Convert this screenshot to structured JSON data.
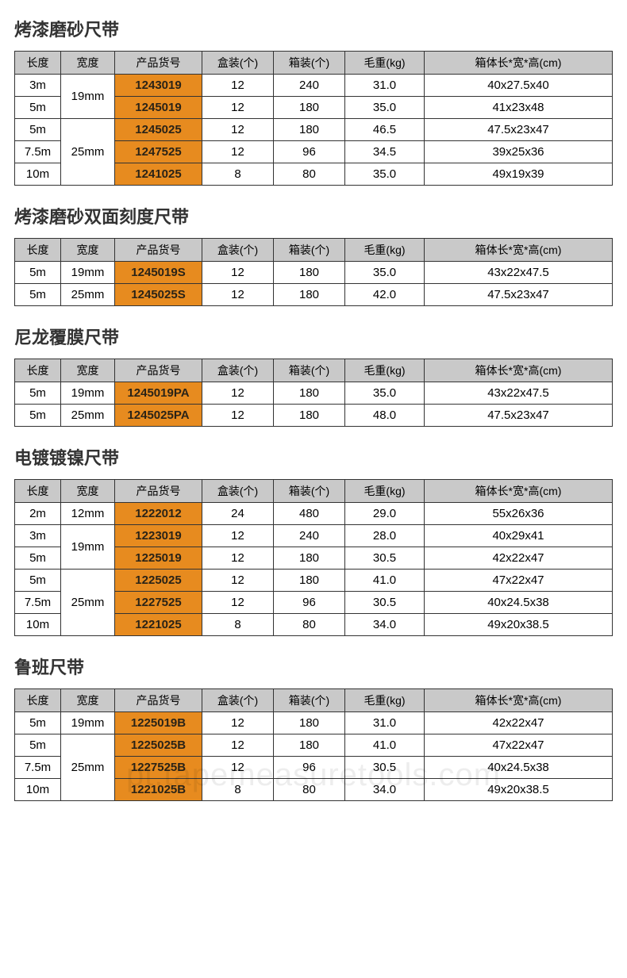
{
  "headers": {
    "length": "长度",
    "width": "宽度",
    "code": "产品货号",
    "box": "盒装(个)",
    "crate": "箱装(个)",
    "weight": "毛重(kg)",
    "dims": "箱体长*宽*高(cm)"
  },
  "watermark": "pt.tapemeasuretools.com",
  "colors": {
    "header_bg": "#c9c9c9",
    "code_bg": "#e78b1f",
    "border": "#333333",
    "background": "#ffffff"
  },
  "sections": [
    {
      "title": "烤漆磨砂尺带",
      "rows": [
        {
          "len": "3m",
          "wid": "19mm",
          "wid_rowspan": 2,
          "code": "1243019",
          "box": "12",
          "crate": "240",
          "wt": "31.0",
          "dim": "40x27.5x40"
        },
        {
          "len": "5m",
          "code": "1245019",
          "box": "12",
          "crate": "180",
          "wt": "35.0",
          "dim": "41x23x48"
        },
        {
          "len": "5m",
          "wid": "25mm",
          "wid_rowspan": 3,
          "code": "1245025",
          "box": "12",
          "crate": "180",
          "wt": "46.5",
          "dim": "47.5x23x47"
        },
        {
          "len": "7.5m",
          "code": "1247525",
          "box": "12",
          "crate": "96",
          "wt": "34.5",
          "dim": "39x25x36"
        },
        {
          "len": "10m",
          "code": "1241025",
          "box": "8",
          "crate": "80",
          "wt": "35.0",
          "dim": "49x19x39"
        }
      ]
    },
    {
      "title": "烤漆磨砂双面刻度尺带",
      "rows": [
        {
          "len": "5m",
          "wid": "19mm",
          "wid_rowspan": 1,
          "code": "1245019S",
          "box": "12",
          "crate": "180",
          "wt": "35.0",
          "dim": "43x22x47.5"
        },
        {
          "len": "5m",
          "wid": "25mm",
          "wid_rowspan": 1,
          "code": "1245025S",
          "box": "12",
          "crate": "180",
          "wt": "42.0",
          "dim": "47.5x23x47"
        }
      ]
    },
    {
      "title": "尼龙覆膜尺带",
      "rows": [
        {
          "len": "5m",
          "wid": "19mm",
          "wid_rowspan": 1,
          "code": "1245019PA",
          "box": "12",
          "crate": "180",
          "wt": "35.0",
          "dim": "43x22x47.5"
        },
        {
          "len": "5m",
          "wid": "25mm",
          "wid_rowspan": 1,
          "code": "1245025PA",
          "box": "12",
          "crate": "180",
          "wt": "48.0",
          "dim": "47.5x23x47"
        }
      ]
    },
    {
      "title": "电镀镀镍尺带",
      "rows": [
        {
          "len": "2m",
          "wid": "12mm",
          "wid_rowspan": 1,
          "code": "1222012",
          "box": "24",
          "crate": "480",
          "wt": "29.0",
          "dim": "55x26x36"
        },
        {
          "len": "3m",
          "wid": "19mm",
          "wid_rowspan": 2,
          "code": "1223019",
          "box": "12",
          "crate": "240",
          "wt": "28.0",
          "dim": "40x29x41"
        },
        {
          "len": "5m",
          "code": "1225019",
          "box": "12",
          "crate": "180",
          "wt": "30.5",
          "dim": "42x22x47"
        },
        {
          "len": "5m",
          "wid": "25mm",
          "wid_rowspan": 3,
          "code": "1225025",
          "box": "12",
          "crate": "180",
          "wt": "41.0",
          "dim": "47x22x47"
        },
        {
          "len": "7.5m",
          "code": "1227525",
          "box": "12",
          "crate": "96",
          "wt": "30.5",
          "dim": "40x24.5x38"
        },
        {
          "len": "10m",
          "code": "1221025",
          "box": "8",
          "crate": "80",
          "wt": "34.0",
          "dim": "49x20x38.5"
        }
      ]
    },
    {
      "title": "鲁班尺带",
      "rows": [
        {
          "len": "5m",
          "wid": "19mm",
          "wid_rowspan": 1,
          "code": "1225019B",
          "box": "12",
          "crate": "180",
          "wt": "31.0",
          "dim": "42x22x47"
        },
        {
          "len": "5m",
          "wid": "25mm",
          "wid_rowspan": 3,
          "code": "1225025B",
          "box": "12",
          "crate": "180",
          "wt": "41.0",
          "dim": "47x22x47"
        },
        {
          "len": "7.5m",
          "code": "1227525B",
          "box": "12",
          "crate": "96",
          "wt": "30.5",
          "dim": "40x24.5x38"
        },
        {
          "len": "10m",
          "code": "1221025B",
          "box": "8",
          "crate": "80",
          "wt": "34.0",
          "dim": "49x20x38.5"
        }
      ]
    }
  ]
}
